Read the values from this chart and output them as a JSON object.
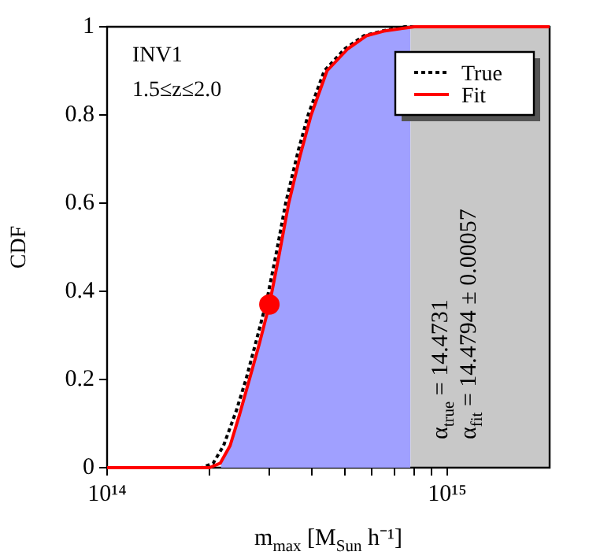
{
  "chart_data": {
    "type": "line",
    "xlabel": "m$_{max}$ [M$_{Sun}$ h⁻¹]",
    "ylabel": "CDF",
    "annotations": [
      "INV1",
      "1.5≤z≤2.0",
      "α$_{true}$ = 14.4731",
      "α$_{fit}$ = 14.4794 ± 0.00057"
    ],
    "log": "x",
    "xlim": [
      100000000000000.0,
      2000000000000000.0
    ],
    "xticks": [
      {
        "value": 100000000000000.0,
        "label": "10¹⁴"
      },
      {
        "value": 200000000000000.0,
        "label": null
      },
      {
        "value": 300000000000000.0,
        "label": null
      },
      {
        "value": 400000000000000.0,
        "label": null
      },
      {
        "value": 500000000000000.0,
        "label": null
      },
      {
        "value": 600000000000000.0,
        "label": null
      },
      {
        "value": 700000000000000.0,
        "label": null
      },
      {
        "value": 800000000000000.0,
        "label": null
      },
      {
        "value": 900000000000000.0,
        "label": null
      },
      {
        "value": 1000000000000000.0,
        "label": "10¹⁵"
      }
    ],
    "ylim": [
      0,
      1
    ],
    "yticks": [
      0,
      0.2,
      0.4,
      0.6,
      0.8,
      1
    ],
    "grid": false,
    "legend": "top right",
    "bands": [
      {
        "axis": "x",
        "from": 780000000000000.0,
        "to": 2000000000000000.0,
        "color": "#c8c8c8"
      }
    ],
    "series": [
      {
        "type": "area",
        "color": "#a0a0ff",
        "marker": "none",
        "x": [
          216000000000000.0,
          230000000000000.0,
          245000000000000.0,
          262000000000000.0,
          280000000000000.0,
          300000000000000.0,
          320000000000000.0,
          342000000000000.0,
          370000000000000.0,
          398000000000000.0,
          443000000000000.0,
          510000000000000.0,
          580000000000000.0,
          650000000000000.0,
          780000000000000.0
        ],
        "values": [
          0.01,
          0.05,
          0.12,
          0.2,
          0.28,
          0.37,
          0.48,
          0.6,
          0.71,
          0.8,
          0.9,
          0.95,
          0.98,
          0.99,
          1.0
        ]
      },
      {
        "name": "True",
        "color": "#000000",
        "line_style": "dotted",
        "marker": "none",
        "x": [
          100000000000000.0,
          190000000000000.0,
          205000000000000.0,
          220000000000000.0,
          240000000000000.0,
          256000000000000.0,
          275000000000000.0,
          295000000000000.0,
          315000000000000.0,
          335000000000000.0,
          365000000000000.0,
          390000000000000.0,
          435000000000000.0,
          500000000000000.0,
          570000000000000.0,
          640000000000000.0,
          750000000000000.0,
          2000000000000000.0
        ],
        "values": [
          0,
          0,
          0.01,
          0.05,
          0.13,
          0.2,
          0.29,
          0.38,
          0.49,
          0.6,
          0.72,
          0.8,
          0.9,
          0.95,
          0.98,
          0.99,
          1,
          1
        ]
      },
      {
        "name": "Fit",
        "color": "#ff0000",
        "line_style": "solid",
        "marker": "none",
        "x": [
          100000000000000.0,
          200000000000000.0,
          215000000000000.0,
          230000000000000.0,
          245000000000000.0,
          262000000000000.0,
          280000000000000.0,
          300000000000000.0,
          320000000000000.0,
          342000000000000.0,
          370000000000000.0,
          398000000000000.0,
          443000000000000.0,
          510000000000000.0,
          580000000000000.0,
          650000000000000.0,
          800000000000000.0,
          2000000000000000.0
        ],
        "values": [
          0,
          0,
          0.01,
          0.05,
          0.12,
          0.2,
          0.28,
          0.37,
          0.48,
          0.6,
          0.71,
          0.8,
          0.9,
          0.95,
          0.98,
          0.99,
          1,
          1
        ]
      },
      {
        "type": "scatter",
        "color": "#ff0000",
        "marker": "circle",
        "x": [
          300000000000000.0
        ],
        "values": [
          0.37
        ]
      }
    ]
  }
}
